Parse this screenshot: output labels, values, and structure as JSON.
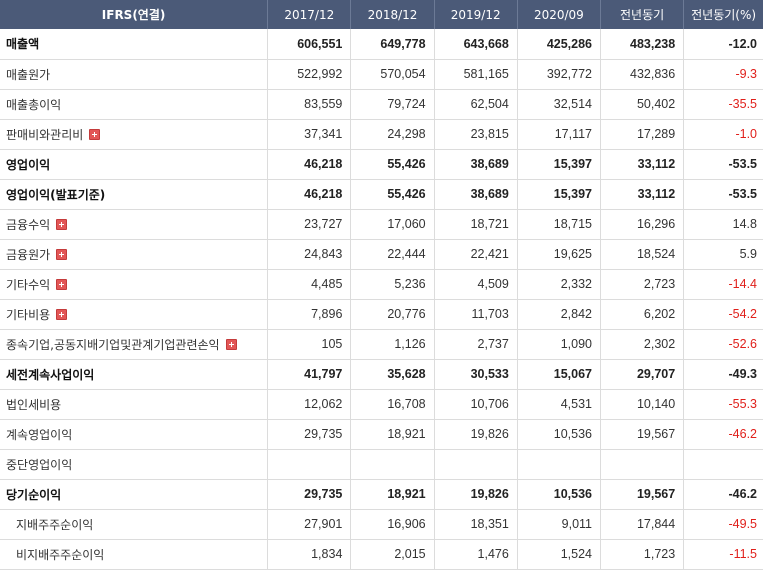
{
  "header": {
    "label": "IFRS(연결)",
    "columns": [
      "2017/12",
      "2018/12",
      "2019/12",
      "2020/09",
      "전년동기",
      "전년동기(%)"
    ]
  },
  "rows": [
    {
      "label": "매출액",
      "values": [
        "606,551",
        "649,778",
        "643,668",
        "425,286",
        "483,238",
        "-12.0"
      ],
      "major": true,
      "expand": false
    },
    {
      "label": "매출원가",
      "values": [
        "522,992",
        "570,054",
        "581,165",
        "392,772",
        "432,836",
        "-9.3"
      ],
      "major": false,
      "expand": false
    },
    {
      "label": "매출총이익",
      "values": [
        "83,559",
        "79,724",
        "62,504",
        "32,514",
        "50,402",
        "-35.5"
      ],
      "major": false,
      "expand": false
    },
    {
      "label": "판매비와관리비",
      "values": [
        "37,341",
        "24,298",
        "23,815",
        "17,117",
        "17,289",
        "-1.0"
      ],
      "major": false,
      "expand": true
    },
    {
      "label": "영업이익",
      "values": [
        "46,218",
        "55,426",
        "38,689",
        "15,397",
        "33,112",
        "-53.5"
      ],
      "major": true,
      "expand": false
    },
    {
      "label": "영업이익(발표기준)",
      "values": [
        "46,218",
        "55,426",
        "38,689",
        "15,397",
        "33,112",
        "-53.5"
      ],
      "major": true,
      "expand": false
    },
    {
      "label": "금융수익",
      "values": [
        "23,727",
        "17,060",
        "18,721",
        "18,715",
        "16,296",
        "14.8"
      ],
      "major": false,
      "expand": true
    },
    {
      "label": "금융원가",
      "values": [
        "24,843",
        "22,444",
        "22,421",
        "19,625",
        "18,524",
        "5.9"
      ],
      "major": false,
      "expand": true
    },
    {
      "label": "기타수익",
      "values": [
        "4,485",
        "5,236",
        "4,509",
        "2,332",
        "2,723",
        "-14.4"
      ],
      "major": false,
      "expand": true
    },
    {
      "label": "기타비용",
      "values": [
        "7,896",
        "20,776",
        "11,703",
        "2,842",
        "6,202",
        "-54.2"
      ],
      "major": false,
      "expand": true
    },
    {
      "label": "종속기업,공동지배기업및관계기업관련손익",
      "values": [
        "105",
        "1,126",
        "2,737",
        "1,090",
        "2,302",
        "-52.6"
      ],
      "major": false,
      "expand": true
    },
    {
      "label": "세전계속사업이익",
      "values": [
        "41,797",
        "35,628",
        "30,533",
        "15,067",
        "29,707",
        "-49.3"
      ],
      "major": true,
      "expand": false
    },
    {
      "label": "법인세비용",
      "values": [
        "12,062",
        "16,708",
        "10,706",
        "4,531",
        "10,140",
        "-55.3"
      ],
      "major": false,
      "expand": false
    },
    {
      "label": "계속영업이익",
      "values": [
        "29,735",
        "18,921",
        "19,826",
        "10,536",
        "19,567",
        "-46.2"
      ],
      "major": false,
      "expand": false
    },
    {
      "label": "중단영업이익",
      "values": [
        "",
        "",
        "",
        "",
        "",
        ""
      ],
      "major": false,
      "expand": false
    },
    {
      "label": "당기순이익",
      "values": [
        "29,735",
        "18,921",
        "19,826",
        "10,536",
        "19,567",
        "-46.2"
      ],
      "major": true,
      "expand": false
    },
    {
      "label": "지배주주순이익",
      "values": [
        "27,901",
        "16,906",
        "18,351",
        "9,011",
        "17,844",
        "-49.5"
      ],
      "major": false,
      "expand": false,
      "indent": true
    },
    {
      "label": "비지배주주순이익",
      "values": [
        "1,834",
        "2,015",
        "1,476",
        "1,524",
        "1,723",
        "-11.5"
      ],
      "major": false,
      "expand": false,
      "indent": true
    }
  ],
  "colors": {
    "header_bg": "#4b5a78",
    "negative": "#e0201b",
    "expand_icon": "#e25656"
  },
  "icons": {
    "expand": "plus-box-icon"
  }
}
